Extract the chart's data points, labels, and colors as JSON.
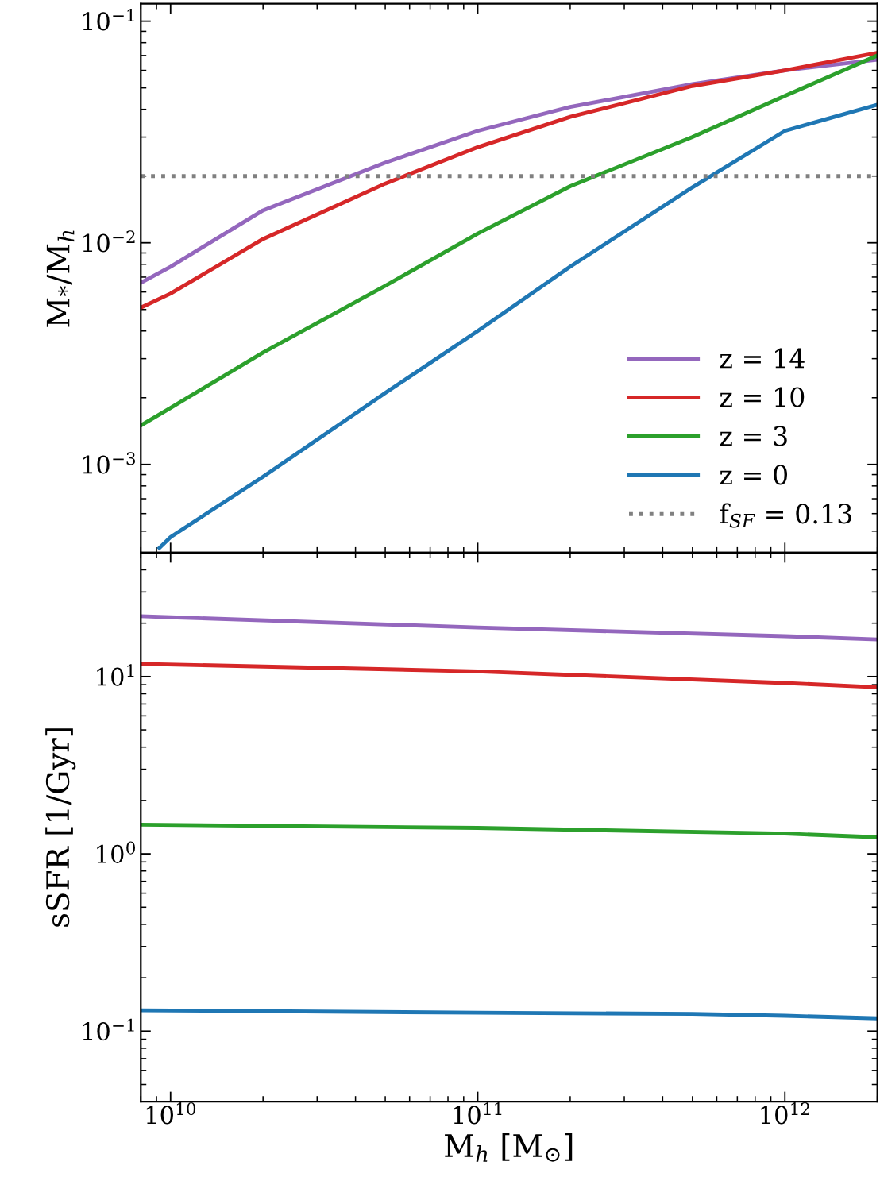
{
  "chart_data": [
    {
      "type": "line",
      "ylabel": "M$_{*}$/M$_{h}$",
      "log": "xy",
      "xlim": [
        8000000000.0,
        2000000000000.0
      ],
      "ylim": [
        0.0004,
        0.12
      ],
      "xticks": [
        {
          "value": 10000000000.0,
          "label": null
        },
        {
          "value": 100000000000.0,
          "label": null
        },
        {
          "value": 1000000000000.0,
          "label": null
        }
      ],
      "yticks": [
        {
          "value": 0.001,
          "label": "10$^{−3}$"
        },
        {
          "value": 0.01,
          "label": "10$^{−2}$"
        },
        {
          "value": 0.1,
          "label": "10$^{−1}$"
        }
      ],
      "tick_labels": "y",
      "legend": "lower right",
      "grid": false,
      "marker": "none",
      "line_style": "solid",
      "series": [
        {
          "name": "z = 14",
          "color": "#9467bd",
          "x": [
            8000000000.0,
            10000000000.0,
            20000000000.0,
            50000000000.0,
            100000000000.0,
            200000000000.0,
            500000000000.0,
            1000000000000.0,
            2000000000000.0
          ],
          "values": [
            0.0066,
            0.0078,
            0.014,
            0.023,
            0.032,
            0.041,
            0.052,
            0.06,
            0.067
          ]
        },
        {
          "name": "z = 10",
          "color": "#d62728",
          "x": [
            8000000000.0,
            10000000000.0,
            20000000000.0,
            50000000000.0,
            100000000000.0,
            200000000000.0,
            500000000000.0,
            1000000000000.0,
            2000000000000.0
          ],
          "values": [
            0.0051,
            0.0059,
            0.0104,
            0.0185,
            0.027,
            0.037,
            0.051,
            0.06,
            0.072
          ]
        },
        {
          "name": "z = 3",
          "color": "#2ca02c",
          "x": [
            8000000000.0,
            10000000000.0,
            20000000000.0,
            50000000000.0,
            100000000000.0,
            200000000000.0,
            500000000000.0,
            1000000000000.0,
            2000000000000.0
          ],
          "values": [
            0.0015,
            0.0018,
            0.0032,
            0.0064,
            0.011,
            0.018,
            0.03,
            0.046,
            0.07
          ]
        },
        {
          "name": "z = 0",
          "color": "#1f77b4",
          "x": [
            9200000000.0,
            10000000000.0,
            20000000000.0,
            50000000000.0,
            100000000000.0,
            200000000000.0,
            500000000000.0,
            1000000000000.0,
            2000000000000.0
          ],
          "values": [
            0.00042,
            0.00047,
            0.00088,
            0.0021,
            0.004,
            0.0078,
            0.0178,
            0.032,
            0.042
          ]
        },
        {
          "name": "f$_{SF}$ = 0.13",
          "color": "#808080",
          "line_style": "dotted",
          "x": [
            8000000000.0,
            2000000000000.0
          ],
          "values": [
            0.02,
            0.02
          ]
        }
      ]
    },
    {
      "type": "line",
      "xlabel": "M$_{h}$ [M$_{⊙}$]",
      "ylabel": "sSFR [1/Gyr]",
      "log": "xy",
      "xlim": [
        8000000000.0,
        2000000000000.0
      ],
      "ylim": [
        0.04,
        50
      ],
      "xticks": [
        {
          "value": 10000000000.0,
          "label": "10$^{10}$"
        },
        {
          "value": 100000000000.0,
          "label": "10$^{11}$"
        },
        {
          "value": 1000000000000.0,
          "label": "10$^{12}$"
        }
      ],
      "yticks": [
        {
          "value": 0.1,
          "label": "10$^{−1}$"
        },
        {
          "value": 1,
          "label": "10$^{0}$"
        },
        {
          "value": 10,
          "label": "10$^{1}$"
        }
      ],
      "grid": false,
      "marker": "none",
      "line_style": "solid",
      "series": [
        {
          "color": "#9467bd",
          "x": [
            8000000000.0,
            10000000000.0,
            100000000000.0,
            1000000000000.0,
            2000000000000.0
          ],
          "values": [
            21.9,
            21.6,
            18.9,
            16.9,
            16.2
          ]
        },
        {
          "color": "#d62728",
          "x": [
            8000000000.0,
            100000000000.0,
            1000000000000.0,
            2000000000000.0
          ],
          "values": [
            11.8,
            10.7,
            9.2,
            8.7
          ]
        },
        {
          "color": "#2ca02c",
          "x": [
            8000000000.0,
            100000000000.0,
            1000000000000.0,
            2000000000000.0
          ],
          "values": [
            1.46,
            1.4,
            1.3,
            1.24
          ]
        },
        {
          "color": "#1f77b4",
          "x": [
            8000000000.0,
            100000000000.0,
            500000000000.0,
            1000000000000.0,
            2000000000000.0
          ],
          "values": [
            0.131,
            0.127,
            0.125,
            0.122,
            0.118
          ]
        }
      ]
    }
  ]
}
